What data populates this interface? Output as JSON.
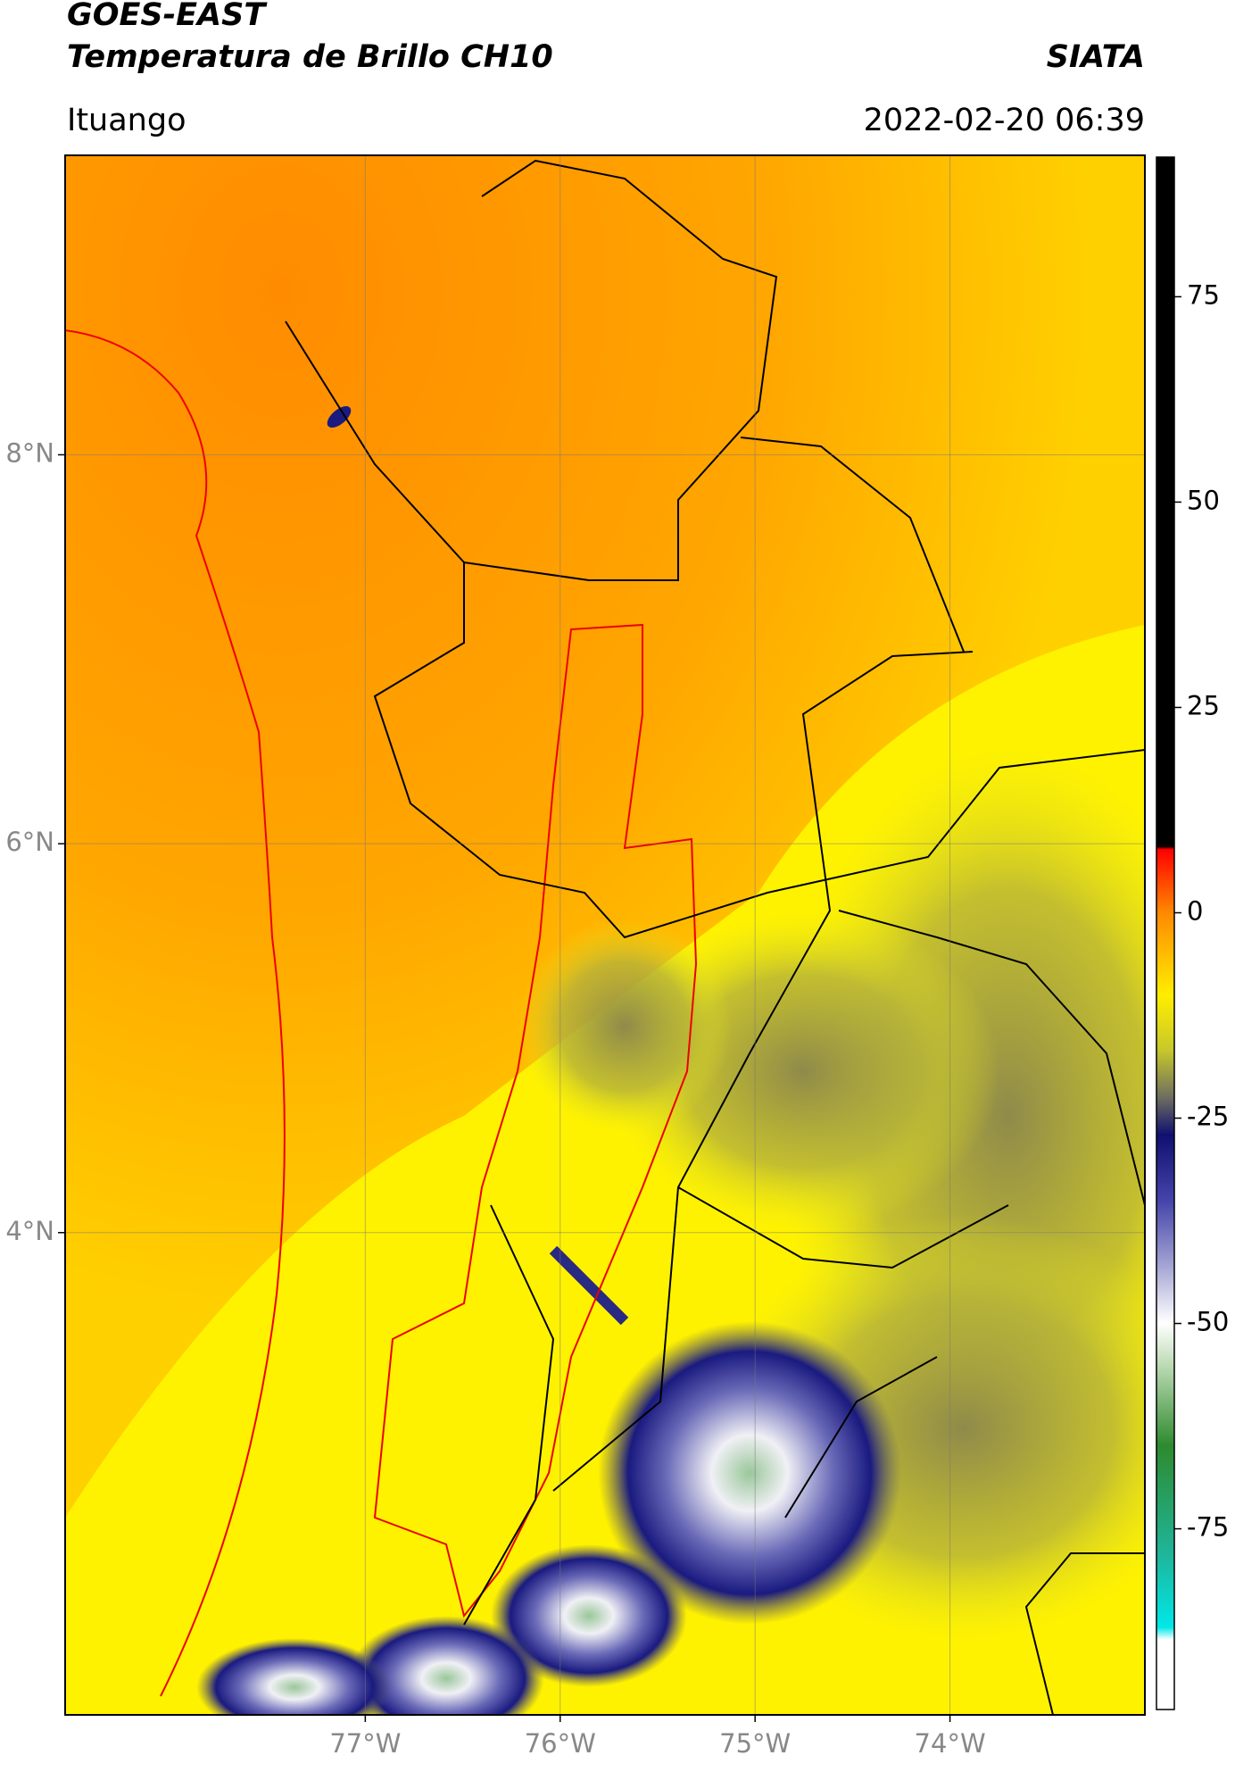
{
  "header": {
    "satellite": "GOES-EAST",
    "product": "Temperatura de Brillo CH10",
    "institution": "SIATA",
    "region": "Ituango",
    "datetime": "2022-02-20 06:39"
  },
  "map": {
    "latlim": [
      1.52,
      9.54
    ],
    "lonlim": [
      -78.54,
      -73.0
    ],
    "lat_ticks": [
      {
        "value": 8,
        "label": "8°N"
      },
      {
        "value": 6,
        "label": "6°N"
      },
      {
        "value": 4,
        "label": "4°N"
      }
    ],
    "lon_ticks": [
      {
        "value": -77,
        "label": "77°W"
      },
      {
        "value": -76,
        "label": "76°W"
      },
      {
        "value": -75,
        "label": "75°W"
      },
      {
        "value": -74,
        "label": "74°W"
      }
    ],
    "grid": true
  },
  "colorbar": {
    "range": [
      -97,
      92
    ],
    "ticks": [
      75,
      50,
      25,
      0,
      -25,
      -50,
      -75
    ]
  }
}
